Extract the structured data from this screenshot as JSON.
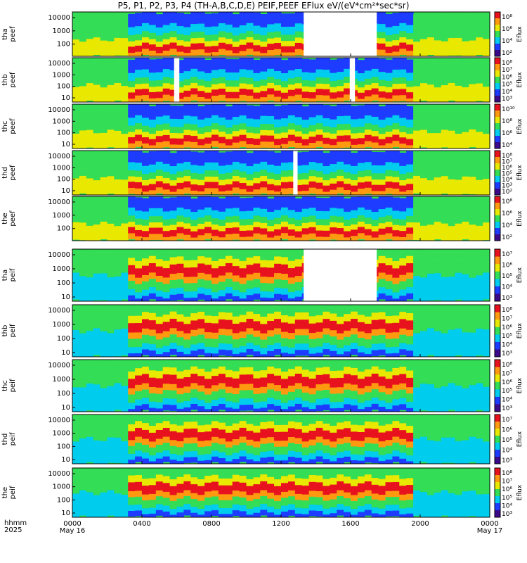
{
  "title": "P5, P1, P2, P3, P4 (TH-A,B,C,D,E) PEIF,PEEF EFlux eV/(eV*cm²*sec*sr)",
  "footer": {
    "hhmm": "hhmm",
    "year": "2025"
  },
  "colors": {
    "lo": "#3a0a8a",
    "blue": "#1e3cff",
    "cyan": "#00ccee",
    "green": "#33dd55",
    "yellow": "#e8e800",
    "orange": "#ff9a10",
    "red": "#e8121e",
    "white": "#ffffff"
  },
  "chart_data": {
    "type": "heatmap",
    "x_ticks": [
      "0000",
      "0400",
      "0800",
      "1200",
      "1600",
      "2000",
      "0000"
    ],
    "x_dates": [
      "May 16",
      "May 17"
    ],
    "x_range_hours": [
      0,
      24
    ],
    "panels": [
      {
        "id": "tha-peef",
        "ylabel": [
          "tha",
          "peef"
        ],
        "cblabel": "Eflux",
        "yticks": [
          "10000",
          "1000",
          "100"
        ],
        "cbticks": [
          "10⁸",
          "10⁶",
          "10⁴",
          "10²"
        ],
        "gaps": [
          [
            13.3,
            17.5
          ]
        ]
      },
      {
        "id": "thb-peef",
        "ylabel": [
          "thb",
          "peef"
        ],
        "cblabel": "Eflux",
        "yticks": [
          "10000",
          "1000",
          "100",
          "10"
        ],
        "cbticks": [
          "10⁸",
          "10⁷",
          "10⁶",
          "10⁵",
          "10⁴",
          "10³"
        ],
        "gaps": [
          [
            5.85,
            6.15
          ],
          [
            15.95,
            16.25
          ]
        ]
      },
      {
        "id": "thc-peef",
        "ylabel": [
          "thc",
          "peef"
        ],
        "cblabel": "Eflux",
        "yticks": [
          "10000",
          "1000",
          "100",
          "10"
        ],
        "cbticks": [
          "10¹⁰",
          "10⁸",
          "10⁶",
          "10⁴"
        ],
        "gaps": []
      },
      {
        "id": "thd-peef",
        "ylabel": [
          "thd",
          "peef"
        ],
        "cblabel": "Eflux",
        "yticks": [
          "10000",
          "1000",
          "100",
          "10"
        ],
        "cbticks": [
          "10⁸",
          "10⁷",
          "10⁶",
          "10⁵",
          "10⁴",
          "10³",
          "10²"
        ],
        "gaps": [
          [
            12.7,
            12.95
          ]
        ]
      },
      {
        "id": "the-peef",
        "ylabel": [
          "the",
          "peef"
        ],
        "cblabel": "Eflux",
        "yticks": [
          "10000",
          "1000",
          "100"
        ],
        "cbticks": [
          "10⁸",
          "10⁶",
          "10⁴",
          "10²"
        ],
        "gaps": []
      },
      {
        "id": "tha-peif",
        "ylabel": [
          "tha",
          "peif"
        ],
        "cblabel": "Eflux",
        "yticks": [
          "10000",
          "1000",
          "100",
          "10"
        ],
        "cbticks": [
          "10⁷",
          "10⁶",
          "10⁵",
          "10⁴",
          "10³"
        ],
        "gaps": [
          [
            13.3,
            17.5
          ]
        ]
      },
      {
        "id": "thb-peif",
        "ylabel": [
          "thb",
          "peif"
        ],
        "cblabel": "Eflux",
        "yticks": [
          "10000",
          "1000",
          "100",
          "10"
        ],
        "cbticks": [
          "10⁸",
          "10⁷",
          "10⁶",
          "10⁵",
          "10⁴",
          "10³"
        ],
        "gaps": []
      },
      {
        "id": "thc-peif",
        "ylabel": [
          "thc",
          "peif"
        ],
        "cblabel": "Eflux",
        "yticks": [
          "10000",
          "1000",
          "100",
          "10"
        ],
        "cbticks": [
          "10⁸",
          "10⁷",
          "10⁶",
          "10⁵",
          "10⁴",
          "10³"
        ],
        "gaps": []
      },
      {
        "id": "thd-peif",
        "ylabel": [
          "thd",
          "peif"
        ],
        "cblabel": "Eflux",
        "yticks": [
          "10000",
          "1000",
          "100",
          "10"
        ],
        "cbticks": [
          "10⁷",
          "10⁶",
          "10⁵",
          "10⁴",
          "10³"
        ],
        "gaps": []
      },
      {
        "id": "the-peif",
        "ylabel": [
          "the",
          "peif"
        ],
        "cblabel": "Eflux",
        "yticks": [
          "10000",
          "1000",
          "100",
          "10"
        ],
        "cbticks": [
          "10⁸",
          "10⁷",
          "10⁶",
          "10⁵",
          "10⁴",
          "10³"
        ],
        "gaps": []
      }
    ]
  }
}
